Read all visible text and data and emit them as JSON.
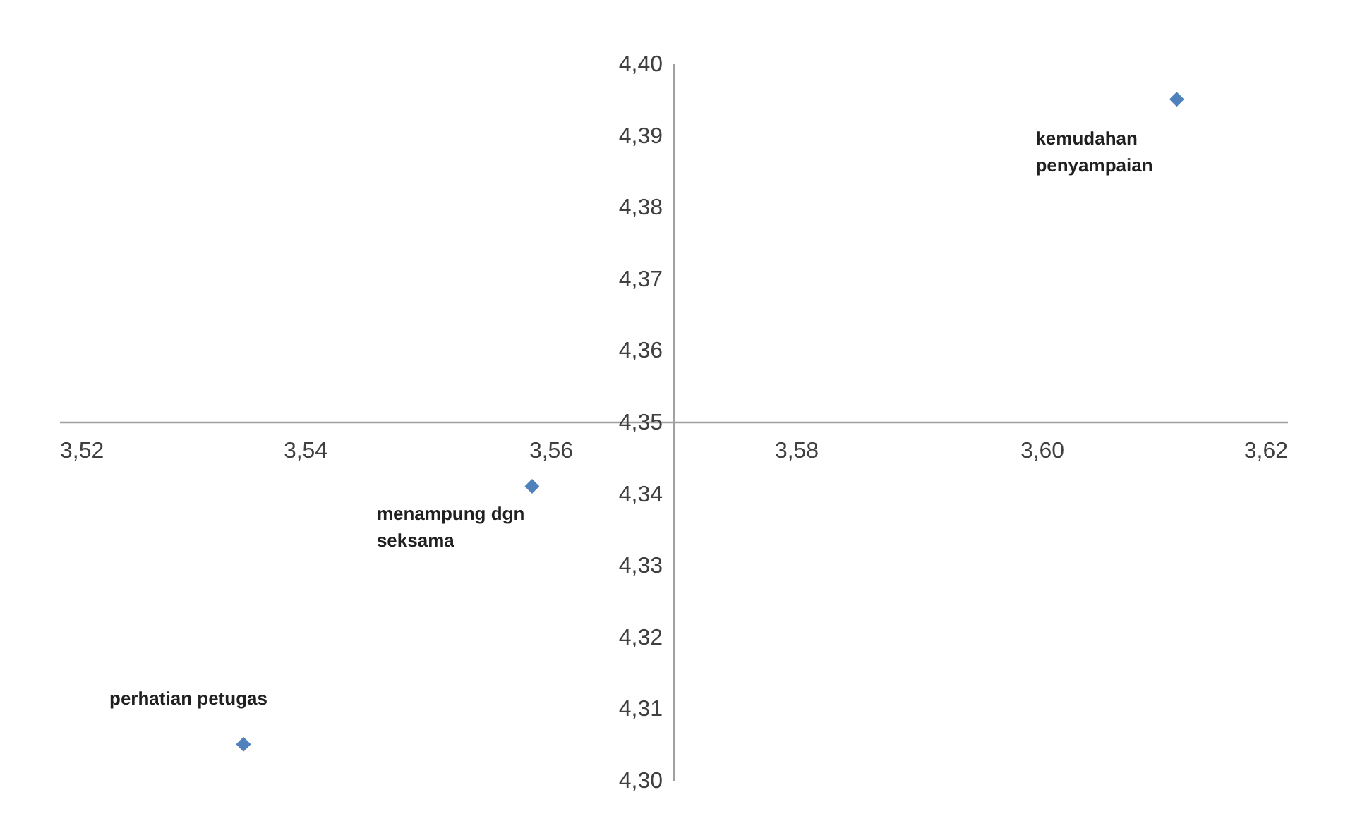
{
  "chart_data": {
    "type": "scatter",
    "x": [
      3.611,
      3.5585,
      3.535
    ],
    "values": [
      4.395,
      4.341,
      4.305
    ],
    "color": "#4f81bd",
    "marker": "diamond",
    "xlim": [
      3.52,
      3.62
    ],
    "ylim": [
      4.3,
      4.4
    ],
    "xticks": [
      {
        "value": 3.52,
        "label": "3,52"
      },
      {
        "value": 3.54,
        "label": "3,54"
      },
      {
        "value": 3.56,
        "label": "3,56"
      },
      {
        "value": 3.58,
        "label": "3,58"
      },
      {
        "value": 3.6,
        "label": "3,60"
      },
      {
        "value": 3.62,
        "label": "3,62"
      }
    ],
    "yticks": [
      {
        "value": 4.3,
        "label": "4,30"
      },
      {
        "value": 4.31,
        "label": "4,31"
      },
      {
        "value": 4.32,
        "label": "4,32"
      },
      {
        "value": 4.33,
        "label": "4,33"
      },
      {
        "value": 4.34,
        "label": "4,34"
      },
      {
        "value": 4.35,
        "label": "4,35"
      },
      {
        "value": 4.36,
        "label": "4,36"
      },
      {
        "value": 4.37,
        "label": "4,37"
      },
      {
        "value": 4.38,
        "label": "4,38"
      },
      {
        "value": 4.39,
        "label": "4,39"
      },
      {
        "value": 4.4,
        "label": "4,40"
      }
    ],
    "annotations": [
      {
        "text": "kemudahan\npenyampaian",
        "x": 3.611,
        "y": 4.395
      },
      {
        "text": "menampung dgn\nseksama",
        "x": 3.5585,
        "y": 4.341
      },
      {
        "text": "perhatian petugas",
        "x": 3.535,
        "y": 4.305
      }
    ],
    "grid": false,
    "legend": false
  }
}
